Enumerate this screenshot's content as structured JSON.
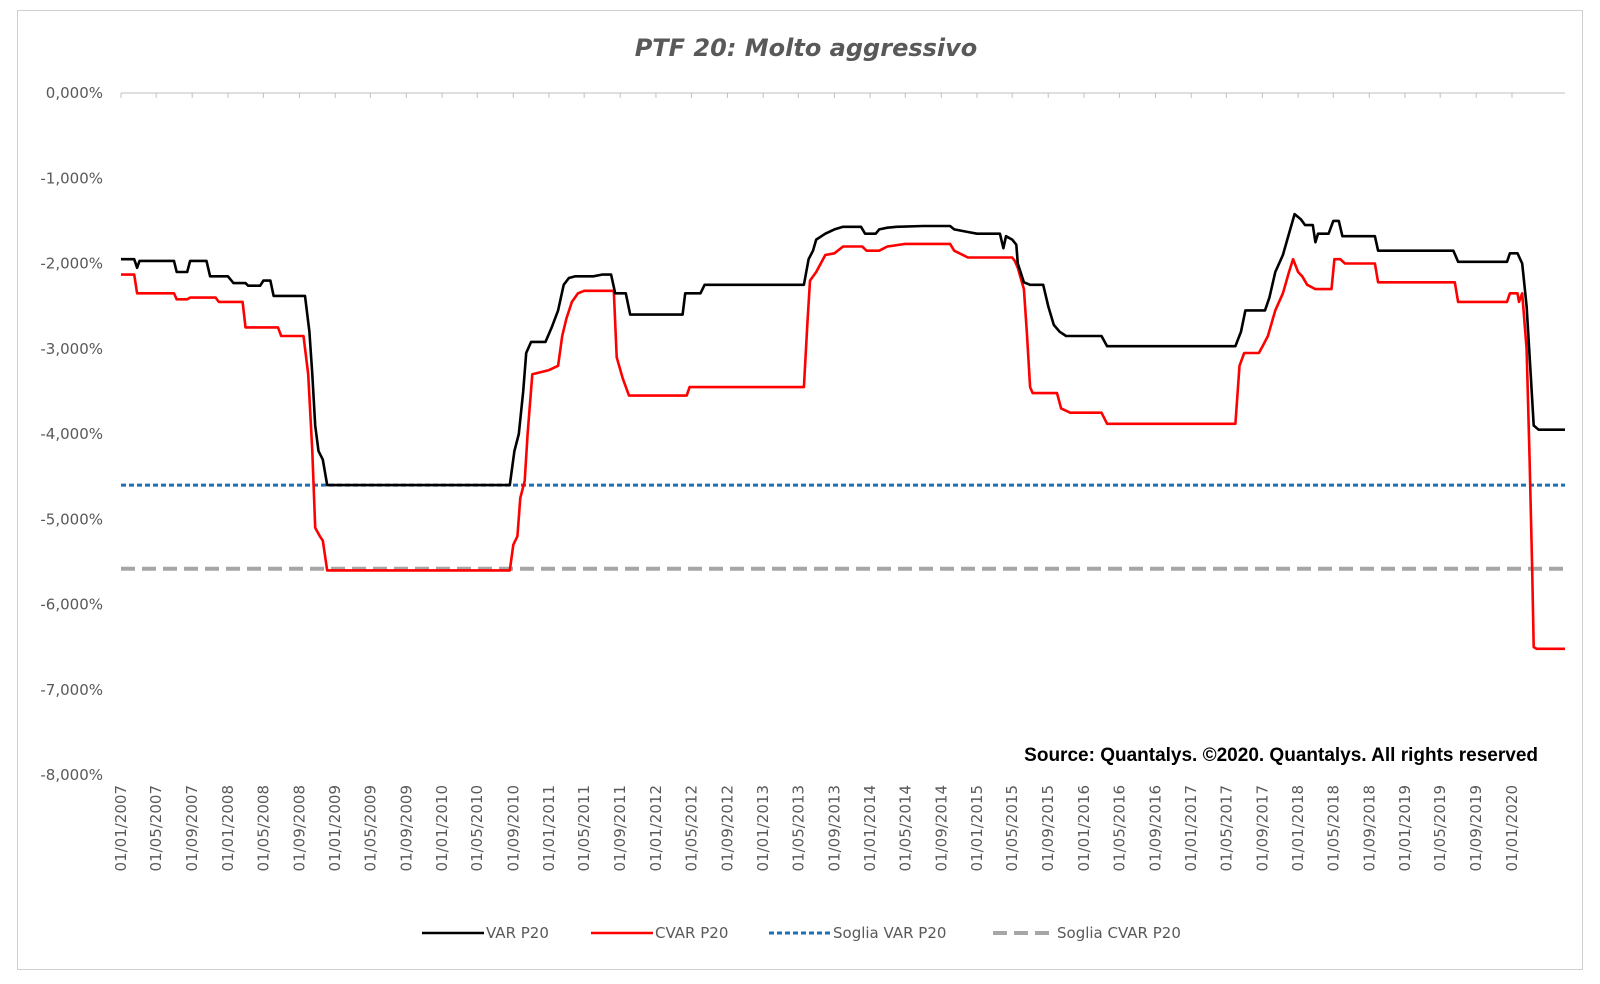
{
  "chart_data": {
    "type": "line",
    "title": "PTF 20: Molto aggressivo",
    "ylim": [
      -8,
      0
    ],
    "y_ticks": [
      "0,000%",
      "-1,000%",
      "-2,000%",
      "-3,000%",
      "-4,000%",
      "-5,000%",
      "-6,000%",
      "-7,000%",
      "-8,000%"
    ],
    "y_tick_values": [
      0,
      -1,
      -2,
      -3,
      -4,
      -5,
      -6,
      -7,
      -8
    ],
    "x_start": "2007-01-01",
    "x_end": "2020-06-30",
    "x_ticks": [
      "01/01/2007",
      "01/05/2007",
      "01/09/2007",
      "01/01/2008",
      "01/05/2008",
      "01/09/2008",
      "01/01/2009",
      "01/05/2009",
      "01/09/2009",
      "01/01/2010",
      "01/05/2010",
      "01/09/2010",
      "01/01/2011",
      "01/05/2011",
      "01/09/2011",
      "01/01/2012",
      "01/05/2012",
      "01/09/2012",
      "01/01/2013",
      "01/05/2013",
      "01/09/2013",
      "01/01/2014",
      "01/05/2014",
      "01/09/2014",
      "01/01/2015",
      "01/05/2015",
      "01/09/2015",
      "01/01/2016",
      "01/05/2016",
      "01/09/2016",
      "01/01/2017",
      "01/05/2017",
      "01/09/2017",
      "01/01/2018",
      "01/05/2018",
      "01/09/2018",
      "01/01/2019",
      "01/05/2019",
      "01/09/2019",
      "01/01/2020"
    ],
    "grid": false,
    "legend_position": "bottom",
    "annotation": "Source: Quantalys. ©2020. Quantalys. All rights reserved",
    "series": [
      {
        "name": "VAR  P20",
        "color": "#000000",
        "style": "solid",
        "points": [
          [
            "2007-01-01",
            -1.95
          ],
          [
            "2007-02-15",
            -1.95
          ],
          [
            "2007-02-25",
            -2.05
          ],
          [
            "2007-03-05",
            -1.97
          ],
          [
            "2007-07-01",
            -1.97
          ],
          [
            "2007-07-10",
            -2.1
          ],
          [
            "2007-08-15",
            -2.1
          ],
          [
            "2007-08-25",
            -1.97
          ],
          [
            "2007-10-20",
            -1.97
          ],
          [
            "2007-11-01",
            -2.15
          ],
          [
            "2008-01-01",
            -2.15
          ],
          [
            "2008-01-20",
            -2.23
          ],
          [
            "2008-03-01",
            -2.23
          ],
          [
            "2008-03-10",
            -2.26
          ],
          [
            "2008-04-20",
            -2.26
          ],
          [
            "2008-05-01",
            -2.2
          ],
          [
            "2008-05-25",
            -2.2
          ],
          [
            "2008-06-05",
            -2.38
          ],
          [
            "2008-09-20",
            -2.38
          ],
          [
            "2008-10-05",
            -2.8
          ],
          [
            "2008-10-15",
            -3.3
          ],
          [
            "2008-10-25",
            -3.9
          ],
          [
            "2008-11-05",
            -4.2
          ],
          [
            "2008-11-20",
            -4.3
          ],
          [
            "2008-12-05",
            -4.6
          ],
          [
            "2010-08-20",
            -4.6
          ],
          [
            "2010-09-05",
            -4.2
          ],
          [
            "2010-09-20",
            -4.0
          ],
          [
            "2010-10-05",
            -3.5
          ],
          [
            "2010-10-15",
            -3.05
          ],
          [
            "2010-11-01",
            -2.92
          ],
          [
            "2010-12-20",
            -2.92
          ],
          [
            "2011-01-10",
            -2.75
          ],
          [
            "2011-02-01",
            -2.55
          ],
          [
            "2011-02-20",
            -2.25
          ],
          [
            "2011-03-10",
            -2.17
          ],
          [
            "2011-04-01",
            -2.15
          ],
          [
            "2011-06-01",
            -2.15
          ],
          [
            "2011-07-01",
            -2.13
          ],
          [
            "2011-08-01",
            -2.13
          ],
          [
            "2011-08-15",
            -2.35
          ],
          [
            "2011-09-20",
            -2.35
          ],
          [
            "2011-10-05",
            -2.6
          ],
          [
            "2012-04-01",
            -2.6
          ],
          [
            "2012-04-10",
            -2.35
          ],
          [
            "2012-06-01",
            -2.35
          ],
          [
            "2012-06-15",
            -2.25
          ],
          [
            "2013-05-20",
            -2.25
          ],
          [
            "2013-06-05",
            -1.95
          ],
          [
            "2013-06-20",
            -1.85
          ],
          [
            "2013-07-01",
            -1.72
          ],
          [
            "2013-08-01",
            -1.65
          ],
          [
            "2013-09-01",
            -1.6
          ],
          [
            "2013-10-01",
            -1.57
          ],
          [
            "2013-12-01",
            -1.57
          ],
          [
            "2013-12-15",
            -1.65
          ],
          [
            "2014-01-20",
            -1.65
          ],
          [
            "2014-02-01",
            -1.6
          ],
          [
            "2014-03-01",
            -1.58
          ],
          [
            "2014-04-01",
            -1.57
          ],
          [
            "2014-07-01",
            -1.56
          ],
          [
            "2014-10-01",
            -1.56
          ],
          [
            "2014-10-15",
            -1.6
          ],
          [
            "2014-12-01",
            -1.63
          ],
          [
            "2015-01-01",
            -1.65
          ],
          [
            "2015-03-20",
            -1.65
          ],
          [
            "2015-04-01",
            -1.82
          ],
          [
            "2015-04-10",
            -1.68
          ],
          [
            "2015-05-01",
            -1.72
          ],
          [
            "2015-05-15",
            -1.78
          ],
          [
            "2015-05-20",
            -2.0
          ],
          [
            "2015-06-10",
            -2.22
          ],
          [
            "2015-07-01",
            -2.25
          ],
          [
            "2015-08-15",
            -2.25
          ],
          [
            "2015-09-01",
            -2.5
          ],
          [
            "2015-09-20",
            -2.72
          ],
          [
            "2015-10-10",
            -2.8
          ],
          [
            "2015-11-01",
            -2.85
          ],
          [
            "2016-03-01",
            -2.85
          ],
          [
            "2016-03-20",
            -2.97
          ],
          [
            "2017-06-01",
            -2.97
          ],
          [
            "2017-06-20",
            -2.8
          ],
          [
            "2017-07-05",
            -2.55
          ],
          [
            "2017-09-10",
            -2.55
          ],
          [
            "2017-09-25",
            -2.4
          ],
          [
            "2017-10-15",
            -2.1
          ],
          [
            "2017-11-10",
            -1.9
          ],
          [
            "2017-12-05",
            -1.6
          ],
          [
            "2017-12-20",
            -1.42
          ],
          [
            "2018-01-10",
            -1.48
          ],
          [
            "2018-01-25",
            -1.55
          ],
          [
            "2018-02-20",
            -1.55
          ],
          [
            "2018-03-01",
            -1.75
          ],
          [
            "2018-03-10",
            -1.65
          ],
          [
            "2018-04-15",
            -1.65
          ],
          [
            "2018-05-01",
            -1.5
          ],
          [
            "2018-05-20",
            -1.5
          ],
          [
            "2018-06-01",
            -1.68
          ],
          [
            "2018-09-20",
            -1.68
          ],
          [
            "2018-10-01",
            -1.85
          ],
          [
            "2019-06-15",
            -1.85
          ],
          [
            "2019-07-01",
            -1.98
          ],
          [
            "2019-12-15",
            -1.98
          ],
          [
            "2019-12-25",
            -1.88
          ],
          [
            "2020-01-20",
            -1.88
          ],
          [
            "2020-02-05",
            -2.0
          ],
          [
            "2020-02-20",
            -2.5
          ],
          [
            "2020-03-05",
            -3.3
          ],
          [
            "2020-03-15",
            -3.9
          ],
          [
            "2020-04-01",
            -3.95
          ],
          [
            "2020-06-30",
            -3.95
          ]
        ]
      },
      {
        "name": "CVAR  P20",
        "color": "#ff0000",
        "style": "solid",
        "points": [
          [
            "2007-01-01",
            -2.13
          ],
          [
            "2007-02-15",
            -2.13
          ],
          [
            "2007-02-25",
            -2.35
          ],
          [
            "2007-07-01",
            -2.35
          ],
          [
            "2007-07-10",
            -2.42
          ],
          [
            "2007-08-15",
            -2.42
          ],
          [
            "2007-08-25",
            -2.4
          ],
          [
            "2007-11-20",
            -2.4
          ],
          [
            "2007-12-01",
            -2.45
          ],
          [
            "2008-02-20",
            -2.45
          ],
          [
            "2008-03-01",
            -2.75
          ],
          [
            "2008-06-20",
            -2.75
          ],
          [
            "2008-07-01",
            -2.85
          ],
          [
            "2008-09-15",
            -2.85
          ],
          [
            "2008-10-01",
            -3.3
          ],
          [
            "2008-10-15",
            -4.2
          ],
          [
            "2008-10-25",
            -5.1
          ],
          [
            "2008-11-10",
            -5.2
          ],
          [
            "2008-11-20",
            -5.25
          ],
          [
            "2008-12-05",
            -5.6
          ],
          [
            "2010-08-20",
            -5.6
          ],
          [
            "2010-09-01",
            -5.3
          ],
          [
            "2010-09-15",
            -5.2
          ],
          [
            "2010-09-25",
            -4.75
          ],
          [
            "2010-10-10",
            -4.55
          ],
          [
            "2010-10-20",
            -4.0
          ],
          [
            "2010-11-05",
            -3.3
          ],
          [
            "2011-01-01",
            -3.25
          ],
          [
            "2011-02-01",
            -3.2
          ],
          [
            "2011-02-15",
            -2.85
          ],
          [
            "2011-03-01",
            -2.65
          ],
          [
            "2011-03-20",
            -2.45
          ],
          [
            "2011-04-10",
            -2.35
          ],
          [
            "2011-05-01",
            -2.32
          ],
          [
            "2011-08-10",
            -2.32
          ],
          [
            "2011-08-20",
            -3.1
          ],
          [
            "2011-09-10",
            -3.35
          ],
          [
            "2011-10-01",
            -3.55
          ],
          [
            "2012-04-15",
            -3.55
          ],
          [
            "2012-04-25",
            -3.45
          ],
          [
            "2013-05-20",
            -3.45
          ],
          [
            "2013-06-01",
            -2.7
          ],
          [
            "2013-06-10",
            -2.2
          ],
          [
            "2013-07-01",
            -2.1
          ],
          [
            "2013-08-01",
            -1.9
          ],
          [
            "2013-09-01",
            -1.88
          ],
          [
            "2013-10-01",
            -1.8
          ],
          [
            "2013-12-05",
            -1.8
          ],
          [
            "2013-12-20",
            -1.85
          ],
          [
            "2014-02-01",
            -1.85
          ],
          [
            "2014-03-01",
            -1.8
          ],
          [
            "2014-05-01",
            -1.77
          ],
          [
            "2014-10-01",
            -1.77
          ],
          [
            "2014-10-15",
            -1.85
          ],
          [
            "2014-12-01",
            -1.93
          ],
          [
            "2015-05-01",
            -1.93
          ],
          [
            "2015-05-10",
            -1.97
          ],
          [
            "2015-05-20",
            -2.05
          ],
          [
            "2015-06-10",
            -2.3
          ],
          [
            "2015-06-20",
            -2.8
          ],
          [
            "2015-07-01",
            -3.45
          ],
          [
            "2015-07-10",
            -3.52
          ],
          [
            "2015-10-01",
            -3.52
          ],
          [
            "2015-10-15",
            -3.7
          ],
          [
            "2015-11-15",
            -3.75
          ],
          [
            "2016-03-01",
            -3.75
          ],
          [
            "2016-03-20",
            -3.88
          ],
          [
            "2017-06-01",
            -3.88
          ],
          [
            "2017-06-15",
            -3.2
          ],
          [
            "2017-07-01",
            -3.05
          ],
          [
            "2017-08-20",
            -3.05
          ],
          [
            "2017-09-05",
            -2.95
          ],
          [
            "2017-09-20",
            -2.85
          ],
          [
            "2017-10-15",
            -2.55
          ],
          [
            "2017-11-10",
            -2.35
          ],
          [
            "2017-12-01",
            -2.1
          ],
          [
            "2017-12-15",
            -1.95
          ],
          [
            "2018-01-01",
            -2.1
          ],
          [
            "2018-01-15",
            -2.15
          ],
          [
            "2018-02-01",
            -2.25
          ],
          [
            "2018-03-01",
            -2.3
          ],
          [
            "2018-04-25",
            -2.3
          ],
          [
            "2018-05-05",
            -1.95
          ],
          [
            "2018-05-25",
            -1.95
          ],
          [
            "2018-06-10",
            -2.0
          ],
          [
            "2018-09-20",
            -2.0
          ],
          [
            "2018-10-01",
            -2.22
          ],
          [
            "2019-06-20",
            -2.22
          ],
          [
            "2019-07-01",
            -2.45
          ],
          [
            "2019-12-15",
            -2.45
          ],
          [
            "2019-12-25",
            -2.35
          ],
          [
            "2020-01-20",
            -2.35
          ],
          [
            "2020-01-25",
            -2.45
          ],
          [
            "2020-02-05",
            -2.35
          ],
          [
            "2020-02-20",
            -3.0
          ],
          [
            "2020-03-01",
            -4.3
          ],
          [
            "2020-03-10",
            -5.6
          ],
          [
            "2020-03-15",
            -6.5
          ],
          [
            "2020-03-25",
            -6.52
          ],
          [
            "2020-06-30",
            -6.52
          ]
        ]
      },
      {
        "name": "Soglia VAR  P20",
        "color": "#1f6fb5",
        "style": "dotted",
        "points": [
          [
            "2007-01-01",
            -4.6
          ],
          [
            "2020-06-30",
            -4.6
          ]
        ]
      },
      {
        "name": "Soglia CVAR  P20",
        "color": "#a6a6a6",
        "style": "dashed",
        "points": [
          [
            "2007-01-01",
            -5.58
          ],
          [
            "2020-06-30",
            -5.58
          ]
        ]
      }
    ]
  }
}
